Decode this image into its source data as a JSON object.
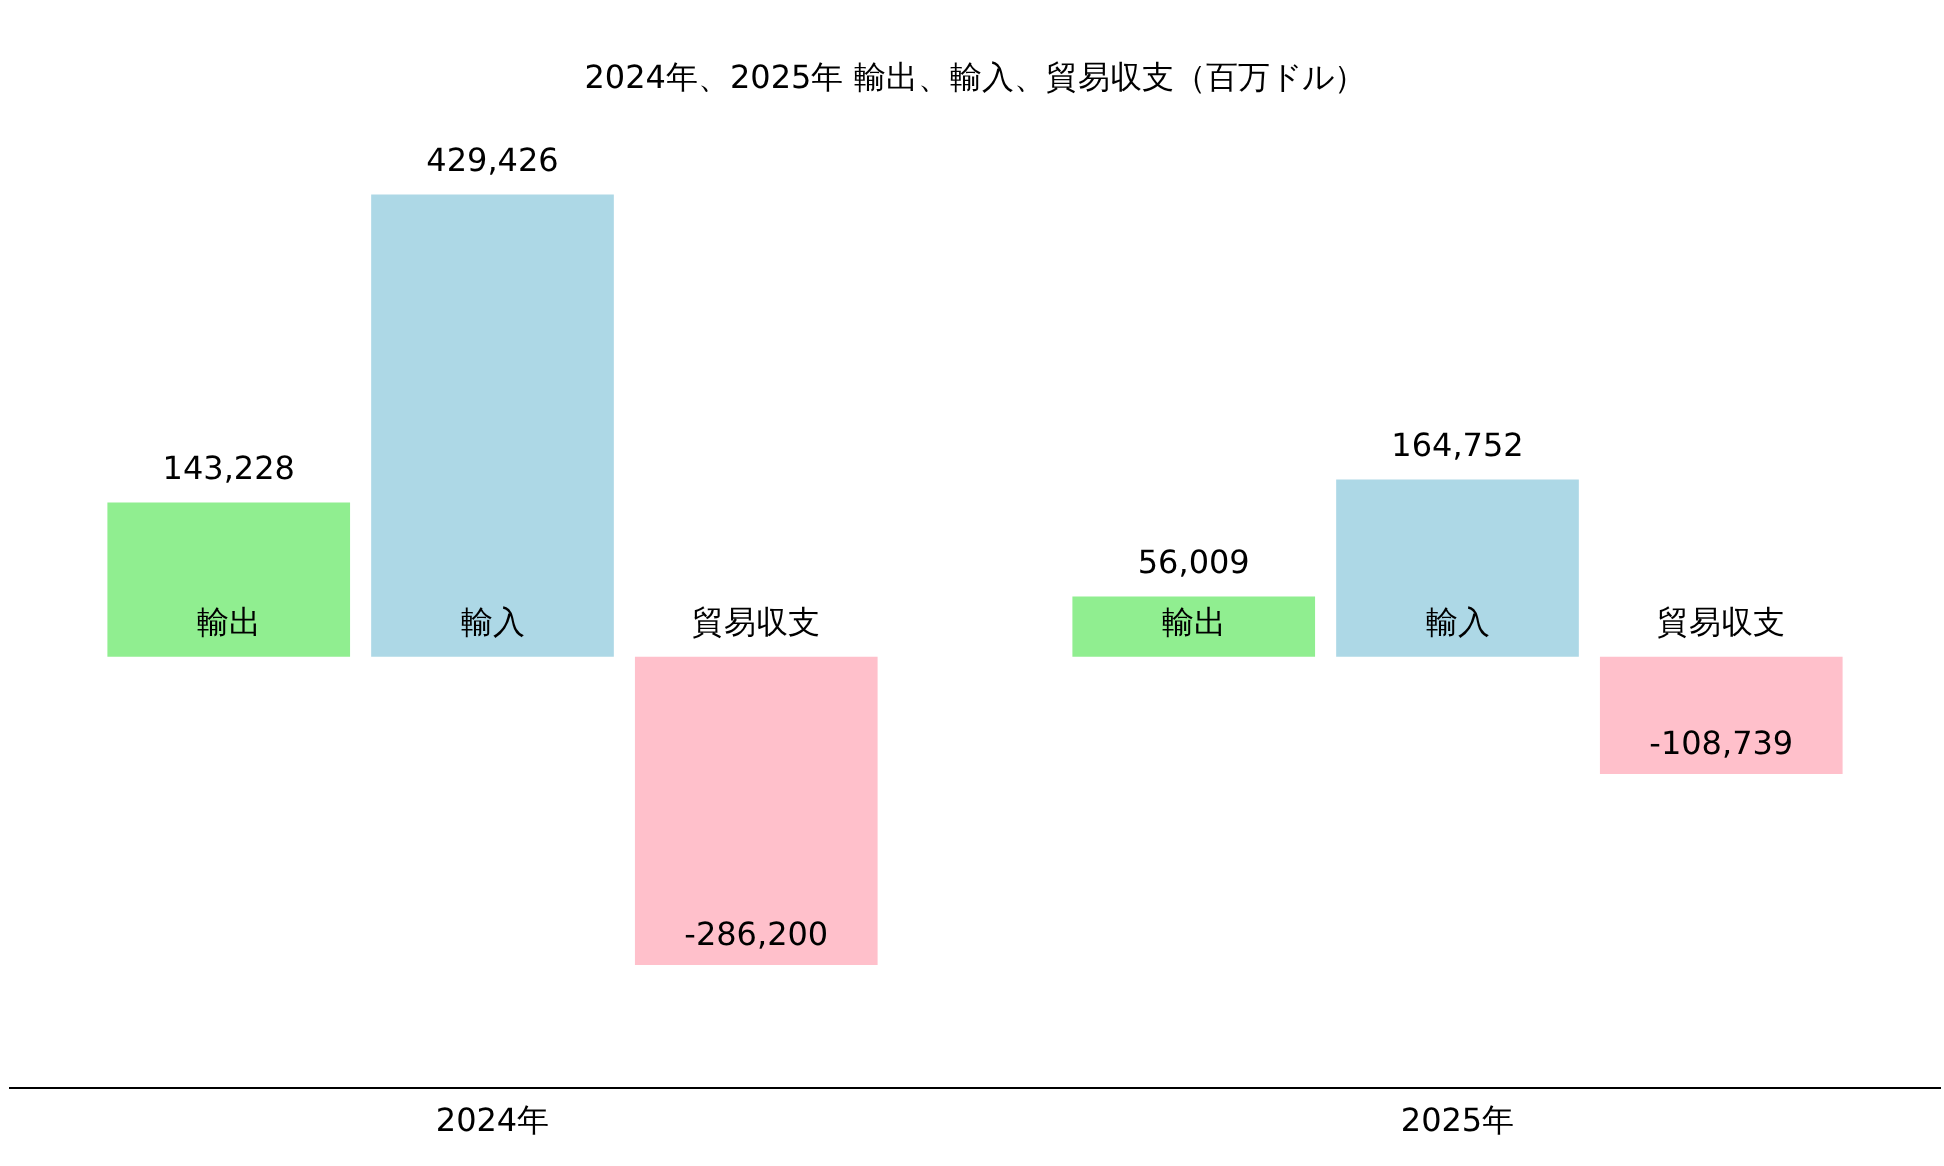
{
  "chart_data": {
    "type": "bar",
    "title": "2024年、2025年 輸出、輸入、貿易収支（百万ドル）",
    "categories": [
      "2024年",
      "2025年"
    ],
    "series": [
      {
        "name": "輸出",
        "color": "#90ee90",
        "values": [
          143228,
          56009
        ],
        "value_labels": [
          "143,228",
          "56,009"
        ]
      },
      {
        "name": "輸入",
        "color": "#add8e6",
        "values": [
          429426,
          164752
        ],
        "value_labels": [
          "429,426",
          "164,752"
        ]
      },
      {
        "name": "貿易収支",
        "color": "#ffc0cb",
        "values": [
          -286200,
          -108739
        ],
        "value_labels": [
          "-286,200",
          "-108,739"
        ]
      }
    ],
    "tick_labels": "x",
    "grid": false,
    "legend": false
  }
}
